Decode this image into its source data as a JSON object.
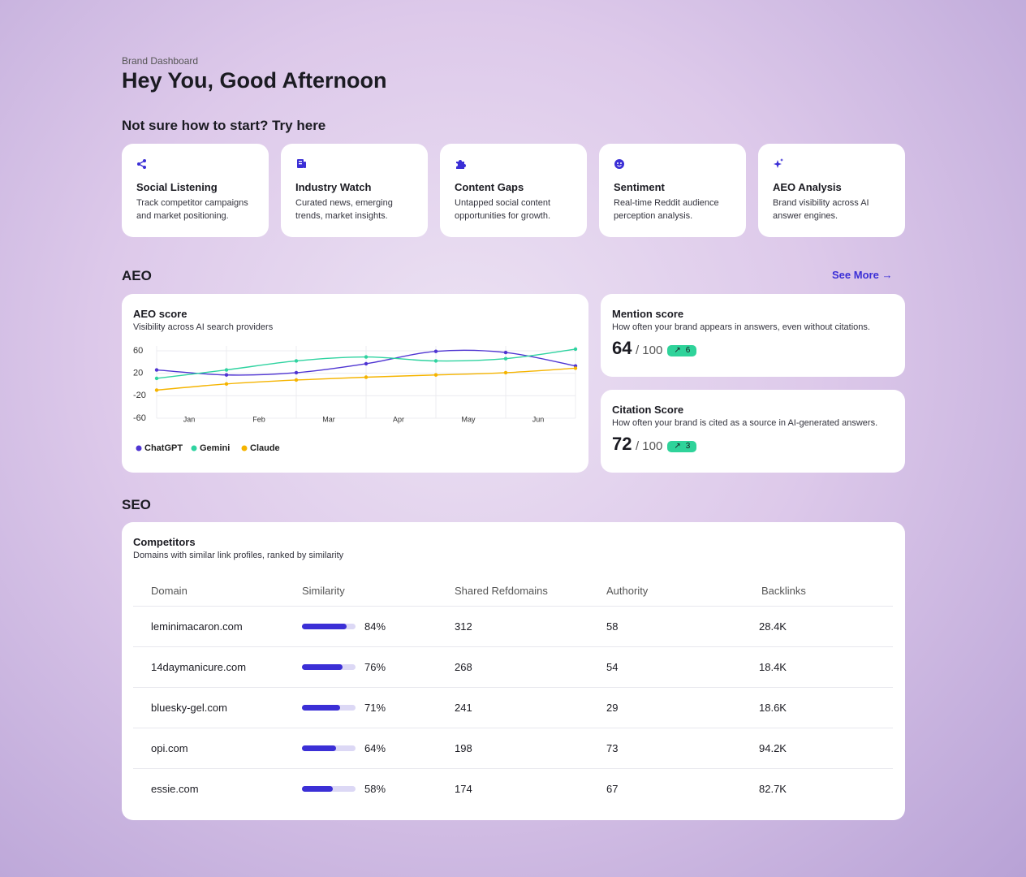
{
  "header": {
    "breadcrumb": "Brand Dashboard",
    "title": "Hey You, Good Afternoon"
  },
  "start": {
    "heading": "Not sure how to start? Try here",
    "cards": [
      {
        "title": "Social Listening",
        "text": "Track competitor campaigns and market positioning."
      },
      {
        "title": "Industry Watch",
        "text": "Curated news, emerging trends, market insights."
      },
      {
        "title": "Content Gaps",
        "text": "Untapped social content opportunities for growth."
      },
      {
        "title": "Sentiment",
        "text": "Real-time Reddit audience perception analysis."
      },
      {
        "title": "AEO Analysis",
        "text": "Brand visibility across AI answer engines."
      }
    ]
  },
  "aeo": {
    "heading": "AEO",
    "see_more": "See More",
    "mention": {
      "title": "Mention score",
      "text": "How often your brand appears in answers, even without citations.",
      "score": 64,
      "max_label": "/ 100",
      "change": 6
    },
    "citation": {
      "title": "Citation Score",
      "text": "How often your brand is cited as a source in AI-generated answers.",
      "score": 72,
      "max_label": "/ 100",
      "change": 3
    }
  },
  "chart_data": {
    "type": "line",
    "title": "AEO score",
    "subtitle": "Visibility across AI search providers",
    "categories": [
      "Jan",
      "Feb",
      "Mar",
      "Apr",
      "May",
      "Jun",
      null
    ],
    "series": [
      {
        "name": "ChatGPT",
        "color": "#4f35d2",
        "values": [
          26,
          17,
          21,
          37,
          59,
          57,
          33
        ]
      },
      {
        "name": "Gemini",
        "color": "#2fd3a0",
        "values": [
          11,
          26,
          42,
          49,
          42,
          46,
          63
        ]
      },
      {
        "name": "Claude",
        "color": "#f5b400",
        "values": [
          -10,
          1,
          8,
          13,
          17,
          21,
          29
        ]
      }
    ],
    "ylim": [
      -60,
      60
    ],
    "yticks": [
      60,
      20,
      -20,
      -60
    ],
    "grid": true,
    "legend": "bottom"
  },
  "seo": {
    "heading": "SEO",
    "title": "Competitors",
    "subtitle": "Domains with similar link profiles, ranked by similarity",
    "columns": [
      "Domain",
      "Similarity",
      "Shared Refdomains",
      "Authority",
      "Backlinks"
    ],
    "rows": [
      {
        "domain": "leminimacaron.com",
        "similarity": 84,
        "similarity_label": "84%",
        "shared": 312,
        "authority": 58,
        "backlinks": "28.4K"
      },
      {
        "domain": "14daymanicure.com",
        "similarity": 76,
        "similarity_label": "76%",
        "shared": 268,
        "authority": 54,
        "backlinks": "18.4K"
      },
      {
        "domain": "bluesky-gel.com",
        "similarity": 71,
        "similarity_label": "71%",
        "shared": 241,
        "authority": 29,
        "backlinks": "18.6K"
      },
      {
        "domain": "opi.com",
        "similarity": 64,
        "similarity_label": "64%",
        "shared": 198,
        "authority": 73,
        "backlinks": "94.2K"
      },
      {
        "domain": "essie.com",
        "similarity": 58,
        "similarity_label": "58%",
        "shared": 174,
        "authority": 67,
        "backlinks": "82.7K"
      }
    ]
  }
}
